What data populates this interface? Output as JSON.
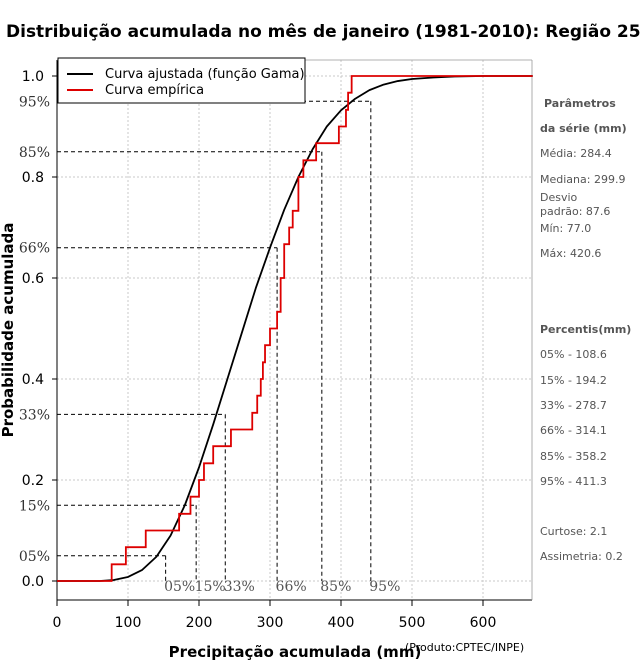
{
  "chart_data": {
    "type": "line",
    "title": "Distribuição acumulada no mês de janeiro (1981-2010): Região 25",
    "xlabel": "Precipitação acumulada (mm)",
    "ylabel": "Probabilidade acumulada",
    "credit": "(Produto:CPTEC/INPE)",
    "xlim": [
      0,
      670
    ],
    "ylim": [
      0,
      1
    ],
    "x_ticks": [
      0,
      100,
      200,
      300,
      400,
      500,
      600
    ],
    "y_ticks": [
      0.0,
      0.2,
      0.4,
      0.6,
      0.8,
      1.0
    ],
    "y_tick_labels": [
      "0.0",
      "0.2",
      "0.4",
      "0.6",
      "0.8",
      "1.0"
    ],
    "grid": true,
    "legend": {
      "position": "top-left",
      "entries": [
        {
          "name": "Curva ajustada (função Gama)",
          "color": "#000000"
        },
        {
          "name": "Curva empírica",
          "color": "#dd0000"
        }
      ]
    },
    "fitted_curve": {
      "name": "Curva ajustada (função Gama)",
      "color": "#000000",
      "x": [
        0,
        60,
        80,
        100,
        120,
        140,
        160,
        180,
        200,
        220,
        240,
        260,
        280,
        300,
        320,
        340,
        360,
        380,
        400,
        420,
        440,
        460,
        480,
        500,
        530,
        560,
        600,
        670
      ],
      "y": [
        0.0,
        0.0,
        0.002,
        0.008,
        0.022,
        0.048,
        0.09,
        0.15,
        0.225,
        0.31,
        0.4,
        0.49,
        0.58,
        0.66,
        0.735,
        0.8,
        0.855,
        0.9,
        0.932,
        0.955,
        0.972,
        0.983,
        0.99,
        0.994,
        0.997,
        0.999,
        1.0,
        1.0
      ]
    },
    "empirical_curve": {
      "name": "Curva empírica",
      "color": "#dd0000",
      "x": [
        0,
        77,
        77,
        97,
        97,
        125,
        125,
        172,
        172,
        188,
        188,
        200,
        200,
        207,
        207,
        220,
        220,
        245,
        245,
        275,
        275,
        282,
        282,
        287,
        287,
        290,
        290,
        293,
        293,
        300,
        300,
        310,
        310,
        315,
        315,
        320,
        320,
        327,
        327,
        332,
        332,
        340,
        340,
        347,
        347,
        365,
        365,
        397,
        397,
        407,
        407,
        410,
        410,
        415,
        415,
        421,
        421,
        670
      ],
      "y": [
        0.0,
        0.0,
        0.033,
        0.033,
        0.067,
        0.067,
        0.1,
        0.1,
        0.133,
        0.133,
        0.167,
        0.167,
        0.2,
        0.2,
        0.233,
        0.233,
        0.267,
        0.267,
        0.3,
        0.3,
        0.333,
        0.333,
        0.367,
        0.367,
        0.4,
        0.4,
        0.433,
        0.433,
        0.467,
        0.467,
        0.5,
        0.5,
        0.533,
        0.533,
        0.6,
        0.6,
        0.667,
        0.667,
        0.7,
        0.7,
        0.733,
        0.733,
        0.8,
        0.8,
        0.833,
        0.833,
        0.867,
        0.867,
        0.9,
        0.9,
        0.933,
        0.933,
        0.967,
        0.967,
        1.0,
        1.0,
        1.0,
        1.0
      ]
    },
    "percentiles": [
      {
        "label": "05%",
        "p": 0.05,
        "x": 153
      },
      {
        "label": "15%",
        "p": 0.15,
        "x": 196
      },
      {
        "label": "33%",
        "p": 0.33,
        "x": 237
      },
      {
        "label": "66%",
        "p": 0.66,
        "x": 310
      },
      {
        "label": "85%",
        "p": 0.85,
        "x": 373
      },
      {
        "label": "95%",
        "p": 0.95,
        "x": 442
      }
    ],
    "side_panel": {
      "params_heading_1": "Parâmetros",
      "params_heading_2": "da série (mm)",
      "media": "Média: 284.4",
      "mediana": "Mediana: 299.9",
      "desvio_1": "Desvio",
      "desvio_2": "padrão: 87.6",
      "min": "Mín: 77.0",
      "max": "Máx: 420.6",
      "percentis_heading": "Percentis(mm)",
      "p05": "05% - 108.6",
      "p15": "15% - 194.2",
      "p33": "33% - 278.7",
      "p66": "66% - 314.1",
      "p85": "85% - 358.2",
      "p95": "95% - 411.3",
      "curtose": "Curtose: 2.1",
      "assimetria": "Assimetria: 0.2"
    }
  }
}
